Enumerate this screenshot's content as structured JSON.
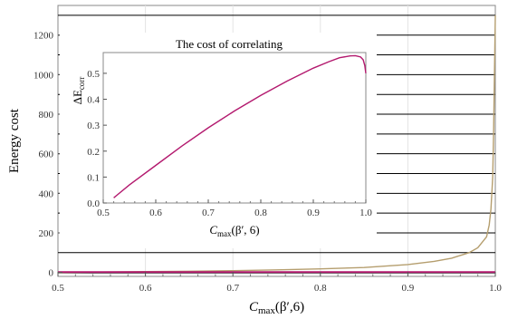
{
  "chart_data": [
    {
      "type": "line",
      "title": "",
      "xlabel_main": "C",
      "xlabel_sub": "max",
      "xlabel_args": "(β′,6)",
      "ylabel": "Energy cost",
      "xlim": [
        0.5,
        1.0
      ],
      "ylim": [
        -20,
        1350
      ],
      "x_ticks": [
        0.5,
        0.6,
        0.7,
        0.8,
        0.9,
        1.0
      ],
      "x_tick_labels": [
        "0.5",
        "0.6",
        "0.7",
        "0.8",
        "0.9",
        "1.0"
      ],
      "y_ticks": [
        0,
        200,
        400,
        600,
        800,
        1000,
        1200
      ],
      "y_tick_labels": [
        "0",
        "200",
        "400",
        "600",
        "800",
        "1000",
        "1200"
      ],
      "grid": true,
      "horizontal_levels": [
        -2,
        100,
        200,
        300,
        400,
        500,
        600,
        700,
        800,
        900,
        1000,
        1100,
        1200,
        1300
      ],
      "series": [
        {
          "color": "#b59e6e",
          "x": [
            0.5,
            0.55,
            0.6,
            0.65,
            0.7,
            0.75,
            0.8,
            0.85,
            0.9,
            0.93,
            0.95,
            0.97,
            0.98,
            0.99,
            0.993,
            0.995,
            0.997,
            0.998,
            0.999,
            1.0
          ],
          "y": [
            0,
            2,
            4,
            6,
            9,
            13,
            18,
            25,
            40,
            56,
            72,
            100,
            125,
            180,
            240,
            320,
            480,
            700,
            1000,
            1300
          ]
        },
        {
          "color": "#b3196e",
          "x": [
            0.5,
            1.0
          ],
          "y": [
            2,
            2
          ]
        }
      ]
    },
    {
      "type": "line",
      "title": "The cost of correlating",
      "xlabel_main": "C",
      "xlabel_sub": "max",
      "xlabel_args": "(β′, 6)",
      "ylabel_main": "ΔE",
      "ylabel_sub": "corr",
      "xlim": [
        0.5,
        1.0
      ],
      "ylim": [
        0.0,
        0.58
      ],
      "x_ticks": [
        0.5,
        0.6,
        0.7,
        0.8,
        0.9,
        1.0
      ],
      "x_tick_labels": [
        "0.5",
        "0.6",
        "0.7",
        "0.8",
        "0.9",
        "1.0"
      ],
      "y_ticks": [
        0.0,
        0.1,
        0.2,
        0.3,
        0.4,
        0.5
      ],
      "y_tick_labels": [
        "0.0",
        "0.1",
        "0.2",
        "0.3",
        "0.4",
        "0.5"
      ],
      "series": [
        {
          "color": "#b3196e",
          "x": [
            0.52,
            0.55,
            0.6,
            0.65,
            0.7,
            0.75,
            0.8,
            0.85,
            0.9,
            0.93,
            0.95,
            0.97,
            0.98,
            0.99,
            0.995,
            0.998,
            1.0
          ],
          "y": [
            0.02,
            0.07,
            0.145,
            0.22,
            0.29,
            0.355,
            0.415,
            0.47,
            0.52,
            0.545,
            0.56,
            0.567,
            0.568,
            0.563,
            0.552,
            0.53,
            0.5
          ]
        }
      ]
    }
  ]
}
